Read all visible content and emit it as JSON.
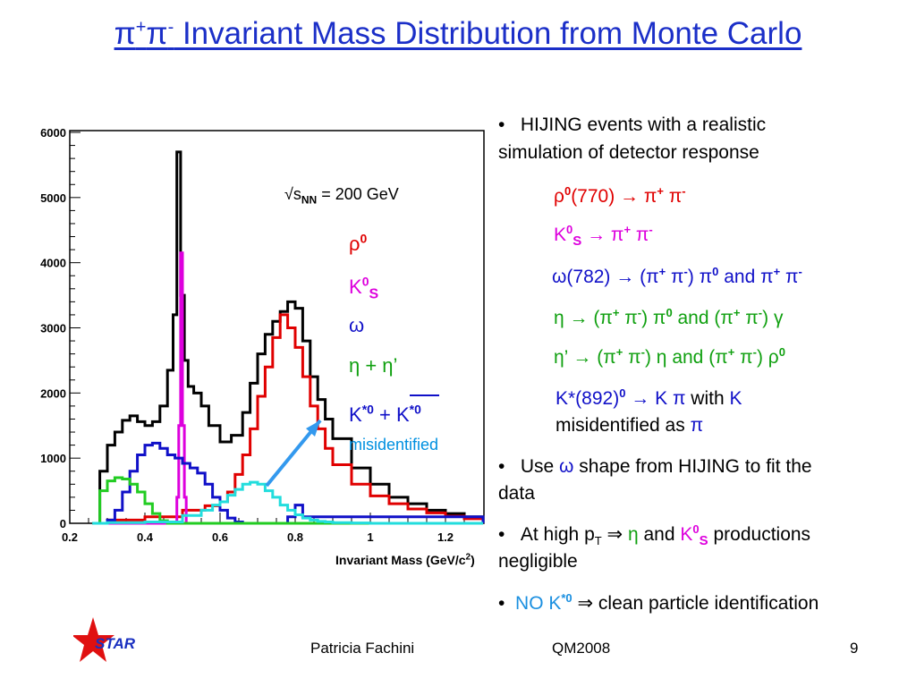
{
  "slide": {
    "title_prefix": "π",
    "title_sup1": "+",
    "title_mid": "π",
    "title_sup2": "-",
    "title_rest": " Invariant Mass Distribution from Monte Carlo",
    "footer_author": "Patricia Fachini",
    "footer_conf": "QM2008",
    "footer_page": "9",
    "logo_text": "STAR",
    "colors": {
      "title": "#1b2fc8",
      "black": "#000000",
      "red": "#e00000",
      "magenta": "#dd00dd",
      "blue": "#1010c8",
      "green": "#22cc22",
      "cyan": "#22dddd",
      "arrow": "#3399ee"
    }
  },
  "bullets": {
    "b1_line1": "HIJING events with a realistic",
    "b1_line2": "simulation of detector response",
    "rho_decay_a": "ρ",
    "rho_decay_b": "0",
    "rho_decay_c": "(770)  → π",
    "rho_decay_d": "+",
    "rho_decay_e": " π",
    "rho_decay_f": "-",
    "k0_a": "K",
    "k0_b": "0",
    "k0_c": "S",
    "k0_d": " → π",
    "k0_e": "+",
    "k0_f": " π",
    "k0_g": "-",
    "omega_a": "ω(782) → (π",
    "omega_b": "+",
    "omega_c": " π",
    "omega_d": "-",
    "omega_e": ") π",
    "omega_f": "0",
    "omega_g": " and π",
    "omega_h": "+",
    "omega_i": " π",
    "omega_j": "-",
    "eta_a": "η → (π",
    "eta_b": "+",
    "eta_c": " π",
    "eta_d": "-",
    "eta_e": ") π",
    "eta_f": "0",
    "eta_g": " and (π",
    "eta_h": "+",
    "eta_i": " π",
    "eta_j": "-",
    "eta_k": ") γ",
    "etap_a": "η’ → (π",
    "etap_b": "+",
    "etap_c": " π",
    "etap_d": "-",
    "etap_e": ") η and (π",
    "etap_f": "+",
    "etap_g": " π",
    "etap_h": "-",
    "etap_i": ") ρ",
    "etap_j": "0",
    "kstar_a": "K*(892)",
    "kstar_b": "0",
    "kstar_c": " → K π",
    "kstar_d": " with ",
    "kstar_e": "K",
    "kstar_f": "misidentified as ",
    "kstar_g": "π",
    "b2_a": "Use ",
    "b2_b": "ω",
    "b2_c": " shape from HIJING to fit the",
    "b2_d": "data",
    "b3_a": "At high p",
    "b3_b": "T",
    "b3_c": " ⇒ ",
    "b3_d": "η",
    "b3_e": " and ",
    "b3_f": "K",
    "b3_g": "0",
    "b3_h": "S",
    "b3_i": " productions",
    "b3_j": "negligible",
    "b4_a": "NO K",
    "b4_b": "*0",
    "b4_c": "  ⇒ clean particle identification"
  },
  "chart_data": {
    "type": "line",
    "xlabel": "Invariant Mass (GeV/c",
    "xlabel_sup": "2",
    "xlabel_end": ")",
    "xlim": [
      0.2,
      1.3
    ],
    "ylim": [
      0,
      6000
    ],
    "xticks": [
      "0.2",
      "0.4",
      "0.6",
      "0.8",
      "1",
      "1.2"
    ],
    "yticks": [
      "0",
      "1000",
      "2000",
      "3000",
      "4000",
      "5000",
      "6000"
    ],
    "energy_label_a": "√s",
    "energy_label_b": "NN",
    "energy_label_c": " = 200 GeV",
    "legend": {
      "rho_a": "ρ",
      "rho_b": "0",
      "k0_a": "K",
      "k0_b": "0",
      "k0_c": "S",
      "omega": "ω",
      "eta": "η + η’",
      "kstar_a": "K",
      "kstar_b": "*0",
      "kstar_c": " + K",
      "kstar_d": "*0",
      "misid": "misidentified"
    },
    "series": [
      {
        "name": "total",
        "color": "#000000",
        "x": [
          0.26,
          0.28,
          0.3,
          0.32,
          0.34,
          0.36,
          0.38,
          0.4,
          0.42,
          0.44,
          0.46,
          0.475,
          0.485,
          0.495,
          0.505,
          0.515,
          0.53,
          0.55,
          0.57,
          0.6,
          0.63,
          0.66,
          0.68,
          0.7,
          0.72,
          0.74,
          0.76,
          0.78,
          0.8,
          0.82,
          0.84,
          0.86,
          0.88,
          0.9,
          0.95,
          1.0,
          1.05,
          1.1,
          1.15,
          1.2,
          1.25,
          1.3
        ],
        "y": [
          0,
          800,
          1200,
          1400,
          1580,
          1650,
          1560,
          1500,
          1560,
          1800,
          2350,
          3200,
          5700,
          3500,
          2500,
          2100,
          2000,
          1800,
          1500,
          1250,
          1350,
          1700,
          2150,
          2600,
          2900,
          3100,
          3250,
          3400,
          3300,
          2800,
          2250,
          1900,
          1600,
          1300,
          850,
          600,
          400,
          300,
          200,
          150,
          100,
          60
        ]
      },
      {
        "name": "ρ0",
        "color": "#e00000",
        "x": [
          0.26,
          0.3,
          0.4,
          0.5,
          0.56,
          0.6,
          0.62,
          0.64,
          0.66,
          0.68,
          0.7,
          0.72,
          0.74,
          0.76,
          0.78,
          0.8,
          0.82,
          0.84,
          0.86,
          0.88,
          0.9,
          0.95,
          1.0,
          1.05,
          1.1,
          1.15,
          1.2,
          1.25,
          1.3
        ],
        "y": [
          0,
          50,
          100,
          200,
          270,
          330,
          480,
          750,
          1050,
          1450,
          1950,
          2400,
          2850,
          3200,
          3000,
          2700,
          2250,
          1800,
          1450,
          1150,
          900,
          600,
          420,
          300,
          220,
          160,
          110,
          70,
          40
        ]
      },
      {
        "name": "K0S",
        "color": "#dd00dd",
        "x": [
          0.26,
          0.46,
          0.475,
          0.485,
          0.49,
          0.495,
          0.5,
          0.505,
          0.51,
          0.52,
          0.53,
          1.3
        ],
        "y": [
          0,
          0,
          0,
          400,
          1500,
          4150,
          1500,
          400,
          0,
          0,
          0,
          0
        ]
      },
      {
        "name": "ω",
        "color": "#1010c8",
        "x": [
          0.26,
          0.28,
          0.3,
          0.32,
          0.34,
          0.36,
          0.38,
          0.4,
          0.42,
          0.44,
          0.46,
          0.48,
          0.5,
          0.52,
          0.54,
          0.56,
          0.58,
          0.6,
          0.62,
          0.64,
          0.66,
          0.68,
          0.7,
          0.72,
          0.74,
          0.76,
          0.78,
          0.8,
          0.82,
          1.3
        ],
        "y": [
          0,
          0,
          50,
          200,
          480,
          800,
          1050,
          1200,
          1230,
          1150,
          1050,
          1000,
          920,
          850,
          770,
          600,
          400,
          200,
          80,
          20,
          0,
          0,
          0,
          0,
          0,
          0,
          100,
          280,
          100,
          0
        ]
      },
      {
        "name": "η + η’",
        "color": "#22cc22",
        "x": [
          0.26,
          0.28,
          0.3,
          0.32,
          0.34,
          0.36,
          0.38,
          0.4,
          0.42,
          0.44,
          0.46,
          1.3
        ],
        "y": [
          0,
          500,
          650,
          700,
          680,
          600,
          480,
          300,
          150,
          40,
          0,
          0
        ]
      },
      {
        "name": "K*0 misidentified",
        "color": "#22dddd",
        "x": [
          0.26,
          0.3,
          0.4,
          0.5,
          0.55,
          0.58,
          0.6,
          0.62,
          0.64,
          0.66,
          0.68,
          0.7,
          0.72,
          0.74,
          0.76,
          0.78,
          0.8,
          0.82,
          0.84,
          0.86,
          0.88,
          0.9,
          0.95,
          1.0,
          1.1,
          1.2,
          1.3
        ],
        "y": [
          0,
          10,
          20,
          120,
          200,
          280,
          330,
          430,
          520,
          600,
          630,
          600,
          500,
          400,
          280,
          200,
          130,
          80,
          50,
          30,
          20,
          10,
          5,
          0,
          0,
          0,
          0
        ]
      }
    ]
  }
}
